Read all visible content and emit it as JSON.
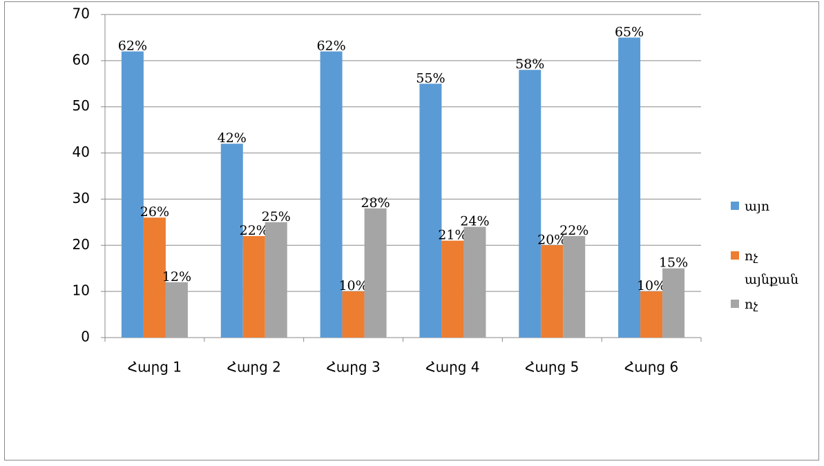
{
  "chart_data": {
    "type": "bar",
    "categories": [
      "Հարց 1",
      "Հարց 2",
      "Հարց 3",
      "Հարց 4",
      "Հարց 5",
      "Հարց 6"
    ],
    "series": [
      {
        "name": "այո",
        "color": "#5b9bd5",
        "values": [
          62,
          42,
          62,
          55,
          58,
          65
        ],
        "value_labels": [
          "62%",
          "42%",
          "62%",
          "55%",
          "58%",
          "65%"
        ]
      },
      {
        "name": "ոչ այնքան",
        "color": "#ed7d31",
        "values": [
          26,
          22,
          10,
          21,
          20,
          10
        ],
        "value_labels": [
          "26%",
          "22%",
          "10%",
          "21%",
          "20%",
          "10%"
        ]
      },
      {
        "name": "ոչ",
        "color": "#a5a5a5",
        "values": [
          12,
          25,
          28,
          24,
          22,
          15
        ],
        "value_labels": [
          "12%",
          "25%",
          "28%",
          "24%",
          "22%",
          "15%"
        ]
      }
    ],
    "ylim": [
      0,
      70
    ],
    "yticks": [
      0,
      10,
      20,
      30,
      40,
      50,
      60,
      70
    ],
    "grid": true,
    "legend": "right"
  }
}
